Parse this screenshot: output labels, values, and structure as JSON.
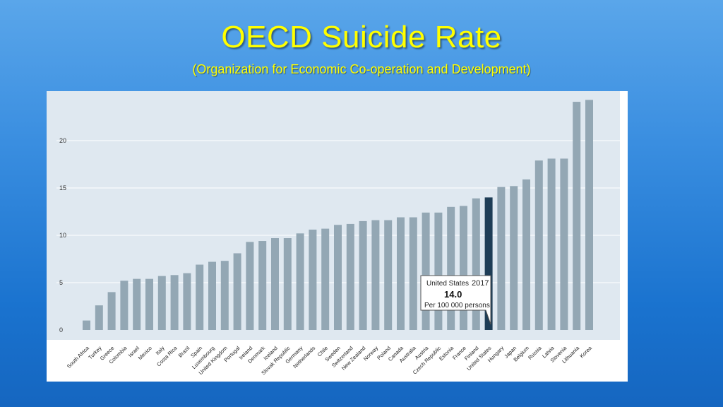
{
  "slide": {
    "title": "OECD Suicide Rate",
    "subtitle": "(Organization for Economic Co-operation and Development)"
  },
  "tooltip": {
    "country": "United States",
    "year": "2017",
    "value": "14.0",
    "unit": "Per 100 000 persons"
  },
  "colors": {
    "bar": "#93a7b4",
    "highlight": "#1e3d56",
    "plot_bg": "#dfe8f0",
    "gridline": "#ffffff"
  },
  "chart_data": {
    "type": "bar",
    "categories": [
      "South Africa",
      "Turkey",
      "Greece",
      "Colombia",
      "Israel",
      "Mexico",
      "Italy",
      "Costa Rica",
      "Brazil",
      "Spain",
      "Luxembourg",
      "United Kingdom",
      "Portugal",
      "Ireland",
      "Denmark",
      "Iceland",
      "Slovak Republic",
      "Germany",
      "Netherlands",
      "Chile",
      "Sweden",
      "Switzerland",
      "New Zealand",
      "Norway",
      "Poland",
      "Canada",
      "Australia",
      "Austria",
      "Czech Republic",
      "Estonia",
      "France",
      "Finland",
      "United States",
      "Hungary",
      "Japan",
      "Belgium",
      "Russia",
      "Latvia",
      "Slovenia",
      "Lithuania",
      "Korea"
    ],
    "values": [
      1.0,
      2.6,
      4.0,
      5.2,
      5.4,
      5.4,
      5.7,
      5.8,
      6.0,
      6.9,
      7.2,
      7.3,
      8.1,
      9.3,
      9.4,
      9.7,
      9.7,
      10.2,
      10.6,
      10.7,
      11.1,
      11.2,
      11.5,
      11.6,
      11.6,
      11.9,
      11.9,
      12.4,
      12.4,
      13.0,
      13.1,
      13.9,
      14.0,
      15.1,
      15.2,
      15.9,
      17.9,
      18.1,
      18.1,
      24.1,
      24.3
    ],
    "highlight": "United States",
    "yticks": [
      0,
      5,
      10,
      15,
      20
    ],
    "ylim": [
      0,
      25
    ],
    "grid": true
  }
}
